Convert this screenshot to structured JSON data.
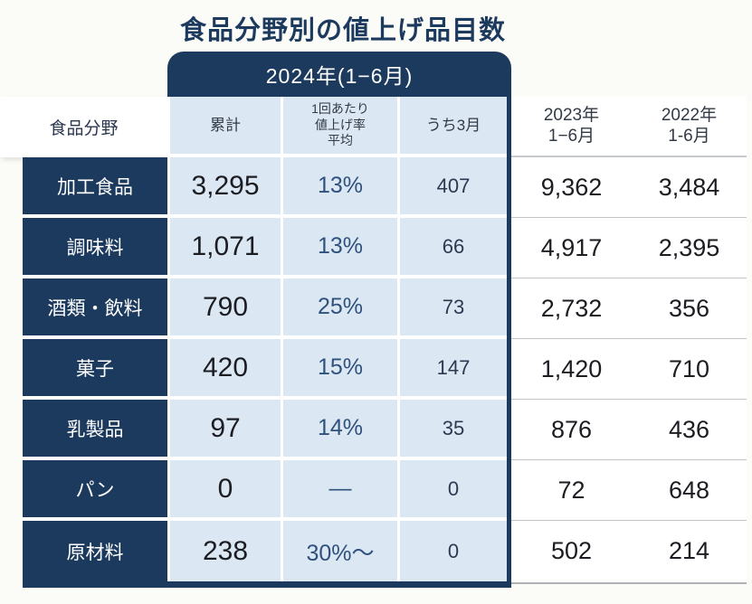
{
  "title": "食品分野別の値上げ品目数",
  "period_banner": "2024年(1−6月)",
  "columns": {
    "category": "食品分野",
    "cumulative": "累計",
    "rate": "1回あたり\n値上げ率\n平均",
    "march": "うち3月",
    "y2023": "2023年\n1−6月",
    "y2022": "2022年\n1-6月"
  },
  "rows": [
    {
      "category": "加工食品",
      "cumulative": "3,295",
      "rate": "13%",
      "march": "407",
      "y2023": "9,362",
      "y2022": "3,484"
    },
    {
      "category": "調味料",
      "cumulative": "1,071",
      "rate": "13%",
      "march": "66",
      "y2023": "4,917",
      "y2022": "2,395"
    },
    {
      "category": "酒類・飲料",
      "cumulative": "790",
      "rate": "25%",
      "march": "73",
      "y2023": "2,732",
      "y2022": "356"
    },
    {
      "category": "菓子",
      "cumulative": "420",
      "rate": "15%",
      "march": "147",
      "y2023": "1,420",
      "y2022": "710"
    },
    {
      "category": "乳製品",
      "cumulative": "97",
      "rate": "14%",
      "march": "35",
      "y2023": "876",
      "y2022": "436"
    },
    {
      "category": "パン",
      "cumulative": "0",
      "rate": "—",
      "march": "0",
      "y2023": "72",
      "y2022": "648"
    },
    {
      "category": "原材料",
      "cumulative": "238",
      "rate": "30%～",
      "march": "0",
      "y2023": "502",
      "y2022": "214"
    }
  ],
  "colors": {
    "navy": "#1c3a5e",
    "light_blue": "#dbe7f3",
    "percent_text": "#2f517e",
    "number_text": "#1c1d22"
  },
  "chart_data": {
    "type": "table",
    "title": "食品分野別の値上げ品目数",
    "column_groups": [
      "2024年(1−6月)",
      "2023年 1−6月",
      "2022年 1-6月"
    ],
    "columns": [
      "食品分野",
      "累計",
      "1回あたり値上げ率平均",
      "うち3月",
      "2023年1−6月",
      "2022年1-6月"
    ],
    "rows": [
      [
        "加工食品",
        3295,
        "13%",
        407,
        9362,
        3484
      ],
      [
        "調味料",
        1071,
        "13%",
        66,
        4917,
        2395
      ],
      [
        "酒類・飲料",
        790,
        "25%",
        73,
        2732,
        356
      ],
      [
        "菓子",
        420,
        "15%",
        147,
        1420,
        710
      ],
      [
        "乳製品",
        97,
        "14%",
        35,
        876,
        436
      ],
      [
        "パン",
        0,
        "—",
        0,
        72,
        648
      ],
      [
        "原材料",
        238,
        "30%～",
        0,
        502,
        214
      ]
    ]
  }
}
